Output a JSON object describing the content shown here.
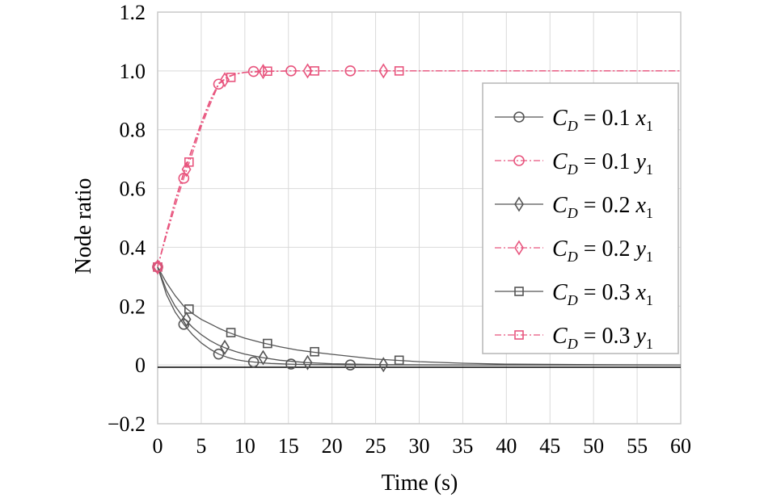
{
  "chart_data": {
    "type": "line",
    "title": "",
    "xlabel": "Time (s)",
    "ylabel": "Node ratio",
    "xlim": [
      0,
      60
    ],
    "ylim": [
      -0.2,
      1.2
    ],
    "xticks": [
      0,
      5,
      10,
      15,
      20,
      25,
      30,
      35,
      40,
      45,
      50,
      55,
      60
    ],
    "yticks": [
      -0.2,
      0,
      0.2,
      0.4,
      0.6,
      0.8,
      1.0,
      1.2
    ],
    "xtick_labels": [
      "0",
      "5",
      "10",
      "15",
      "20",
      "25",
      "30",
      "35",
      "40",
      "45",
      "50",
      "55",
      "60"
    ],
    "ytick_labels": [
      "−0.2",
      "0",
      "0.2",
      "0.4",
      "0.6",
      "0.8",
      "1.0",
      "1.2"
    ],
    "grid": true,
    "legend_position": "right",
    "series": [
      {
        "name": "C_D = 0.1 x_1",
        "legend": {
          "c": "C",
          "sub": "D",
          "eq": " = 0.1 ",
          "v": "x",
          "vsub": "1"
        },
        "color": "#555555",
        "marker": "circle",
        "dash": "solid",
        "x": [
          0,
          1,
          2,
          3,
          4,
          5,
          6,
          7,
          8,
          9,
          10,
          11,
          12,
          13,
          14,
          15,
          16,
          18,
          20,
          22,
          25,
          30,
          40,
          60
        ],
        "y": [
          0.333,
          0.24,
          0.18,
          0.138,
          0.103,
          0.075,
          0.054,
          0.037,
          0.026,
          0.018,
          0.013,
          0.01,
          0.007,
          0.005,
          0.004,
          0.003,
          0.002,
          0.001,
          0.001,
          0,
          0,
          0,
          0,
          0
        ],
        "markers_x": [
          0,
          3,
          7,
          11,
          15.3,
          22.1
        ],
        "markers_y": [
          0.333,
          0.138,
          0.037,
          0.01,
          0.003,
          0
        ]
      },
      {
        "name": "C_D = 0.1 y_1",
        "legend": {
          "c": "C",
          "sub": "D",
          "eq": " = 0.1 ",
          "v": "y",
          "vsub": "1"
        },
        "color": "#e8557e",
        "marker": "circle",
        "dash": "dashdot",
        "x": [
          0,
          1,
          2,
          3,
          4,
          5,
          6,
          7,
          8,
          9,
          10,
          11,
          12,
          15,
          20,
          30,
          60
        ],
        "y": [
          0.333,
          0.44,
          0.54,
          0.635,
          0.72,
          0.81,
          0.885,
          0.955,
          0.98,
          0.99,
          0.995,
          0.998,
          0.999,
          1.0,
          1.0,
          1.0,
          1.0
        ],
        "markers_x": [
          0,
          3,
          7,
          11,
          15.3,
          22.1
        ],
        "markers_y": [
          0.333,
          0.635,
          0.955,
          0.998,
          1.0,
          1.0
        ]
      },
      {
        "name": "C_D = 0.2 x_1",
        "legend": {
          "c": "C",
          "sub": "D",
          "eq": " = 0.2 ",
          "v": "x",
          "vsub": "1"
        },
        "color": "#555555",
        "marker": "diamond",
        "dash": "solid",
        "x": [
          0,
          1,
          2,
          3,
          4,
          5,
          6,
          7,
          8,
          9,
          10,
          12,
          14,
          17,
          20,
          26,
          35,
          60
        ],
        "y": [
          0.333,
          0.255,
          0.2,
          0.16,
          0.128,
          0.103,
          0.083,
          0.067,
          0.055,
          0.045,
          0.037,
          0.025,
          0.016,
          0.008,
          0.004,
          0.001,
          0,
          0
        ],
        "markers_x": [
          0,
          3.3,
          7.7,
          12.1,
          17.2,
          25.9
        ],
        "markers_y": [
          0.333,
          0.155,
          0.06,
          0.025,
          0.008,
          0.001
        ]
      },
      {
        "name": "C_D = 0.2 y_1",
        "legend": {
          "c": "C",
          "sub": "D",
          "eq": " = 0.2 ",
          "v": "y",
          "vsub": "1"
        },
        "color": "#e8557e",
        "marker": "diamond",
        "dash": "dashdot",
        "x": [
          0,
          1,
          2,
          3,
          4,
          5,
          6,
          7,
          8,
          9,
          10,
          12,
          15,
          20,
          30,
          60
        ],
        "y": [
          0.333,
          0.45,
          0.555,
          0.65,
          0.735,
          0.82,
          0.895,
          0.955,
          0.978,
          0.99,
          0.995,
          0.998,
          1.0,
          1.0,
          1.0,
          1.0
        ],
        "markers_x": [
          0,
          3.3,
          7.7,
          12.1,
          17.2,
          25.9
        ],
        "markers_y": [
          0.333,
          0.665,
          0.97,
          0.998,
          1.0,
          1.0
        ]
      },
      {
        "name": "C_D = 0.3 x_1",
        "legend": {
          "c": "C",
          "sub": "D",
          "eq": " = 0.3 ",
          "v": "x",
          "vsub": "1"
        },
        "color": "#555555",
        "marker": "square",
        "dash": "solid",
        "x": [
          0,
          1,
          2,
          3,
          4,
          5,
          6,
          7,
          8,
          9,
          10,
          12,
          14,
          16,
          18,
          20,
          25,
          30,
          35,
          40,
          50,
          60
        ],
        "y": [
          0.333,
          0.28,
          0.236,
          0.2,
          0.175,
          0.155,
          0.14,
          0.125,
          0.112,
          0.101,
          0.091,
          0.075,
          0.062,
          0.051,
          0.043,
          0.036,
          0.02,
          0.011,
          0.006,
          0.003,
          0.001,
          0
        ],
        "markers_x": [
          0,
          3.6,
          8.4,
          12.6,
          18,
          27.7
        ],
        "markers_y": [
          0.333,
          0.19,
          0.11,
          0.073,
          0.045,
          0.016
        ]
      },
      {
        "name": "C_D = 0.3 y_1",
        "legend": {
          "c": "C",
          "sub": "D",
          "eq": " = 0.3 ",
          "v": "y",
          "vsub": "1"
        },
        "color": "#e8557e",
        "marker": "square",
        "dash": "dashdot",
        "x": [
          0,
          1,
          2,
          3,
          4,
          5,
          6,
          7,
          8,
          9,
          10,
          12,
          15,
          20,
          30,
          60
        ],
        "y": [
          0.333,
          0.45,
          0.56,
          0.655,
          0.74,
          0.825,
          0.9,
          0.958,
          0.98,
          0.99,
          0.995,
          0.998,
          1.0,
          1.0,
          1.0,
          1.0
        ],
        "markers_x": [
          0,
          3.6,
          8.4,
          12.6,
          18,
          27.7
        ],
        "markers_y": [
          0.333,
          0.69,
          0.978,
          0.999,
          1.0,
          1.0
        ]
      }
    ]
  }
}
